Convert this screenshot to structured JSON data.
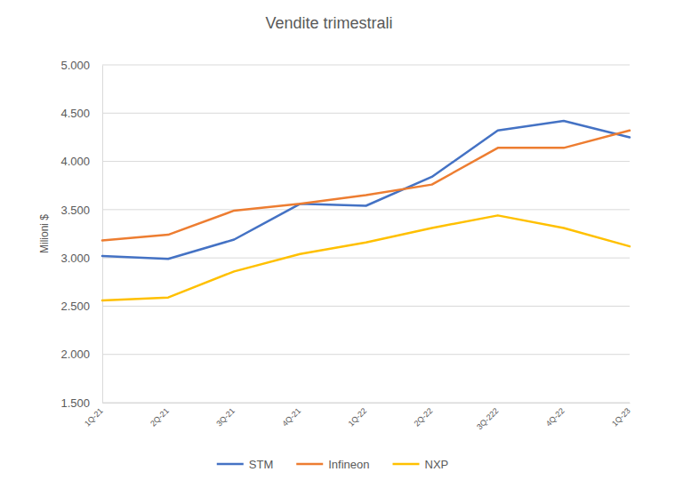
{
  "chart_data": {
    "type": "line",
    "title": "Vendite trimestrali",
    "y_label": "Milioni $",
    "categories": [
      "1Q-21",
      "2Q-21",
      "3Q-21",
      "4Q-21",
      "1Q-22",
      "2Q-22",
      "3Q-222",
      "4Q-22",
      "1Q-23"
    ],
    "series": [
      {
        "name": "STM",
        "color": "#4472c4",
        "values": [
          3020,
          2990,
          3190,
          3560,
          3540,
          3840,
          4320,
          4420,
          4250
        ]
      },
      {
        "name": "Infineon",
        "color": "#ed7d31",
        "values": [
          3180,
          3240,
          3490,
          3560,
          3650,
          3760,
          4140,
          4140,
          4320
        ]
      },
      {
        "name": "NXP",
        "color": "#ffc000",
        "values": [
          2560,
          2590,
          2860,
          3040,
          3160,
          3310,
          3440,
          3310,
          3120
        ]
      }
    ],
    "ylim": [
      1500,
      5000
    ],
    "yticks": [
      {
        "value": 1500,
        "label": "1.500"
      },
      {
        "value": 2000,
        "label": "2.000"
      },
      {
        "value": 2500,
        "label": "2.500"
      },
      {
        "value": 3000,
        "label": "3.000"
      },
      {
        "value": 3500,
        "label": "3.500"
      },
      {
        "value": 4000,
        "label": "4.000"
      },
      {
        "value": 4500,
        "label": "4.500"
      },
      {
        "value": 5000,
        "label": "5.000"
      }
    ],
    "grid": true,
    "legend": "bottom"
  }
}
